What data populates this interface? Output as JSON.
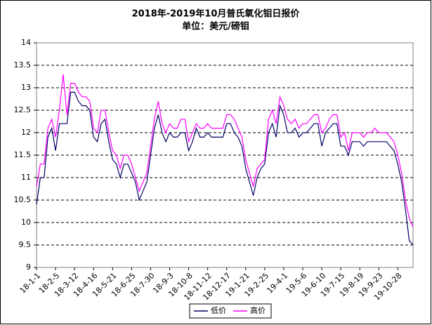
{
  "chart_data": {
    "type": "line",
    "title": "2018年-2019年10月普氏氧化钼日报价",
    "subtitle": "单位：美元/磅钼",
    "categories": [
      "18-1-1",
      null,
      null,
      null,
      null,
      "18-2-5",
      null,
      null,
      null,
      null,
      "18-3-12",
      null,
      null,
      null,
      null,
      "18-4-16",
      null,
      null,
      null,
      null,
      "18-5-21",
      null,
      null,
      null,
      null,
      "18-6-25",
      null,
      null,
      null,
      null,
      "18-7-30",
      null,
      null,
      null,
      null,
      "18-9-3",
      null,
      null,
      null,
      null,
      "18-10-8",
      null,
      null,
      null,
      null,
      "18-11-12",
      null,
      null,
      null,
      null,
      "18-12-17",
      null,
      null,
      null,
      null,
      "19-1-21",
      null,
      null,
      null,
      null,
      "19-2-25",
      null,
      null,
      null,
      null,
      "19-4-1",
      null,
      null,
      null,
      null,
      "19-5-6",
      null,
      null,
      null,
      null,
      "19-6-10",
      null,
      null,
      null,
      null,
      "19-7-15",
      null,
      null,
      null,
      null,
      "19-8-19",
      null,
      null,
      null,
      null,
      "19-9-23",
      null,
      null,
      null,
      null,
      "19-10-28",
      null,
      null,
      null,
      null
    ],
    "series": [
      {
        "name": "低价",
        "color": "#000066",
        "values": [
          10.4,
          11.0,
          11.0,
          11.9,
          12.1,
          11.6,
          12.2,
          12.2,
          12.2,
          12.9,
          12.9,
          12.7,
          12.6,
          12.6,
          12.5,
          11.9,
          11.8,
          12.2,
          12.3,
          11.8,
          11.4,
          11.3,
          11.0,
          11.3,
          11.3,
          11.1,
          10.9,
          10.5,
          10.7,
          10.9,
          11.5,
          12.1,
          12.4,
          12.0,
          11.8,
          12.0,
          11.9,
          11.9,
          12.0,
          12.0,
          11.6,
          11.8,
          12.1,
          11.9,
          11.9,
          12.0,
          11.9,
          11.9,
          11.9,
          11.9,
          12.2,
          12.2,
          12.0,
          11.9,
          11.7,
          11.2,
          10.9,
          10.6,
          11.0,
          11.2,
          11.3,
          12.0,
          12.2,
          11.9,
          12.6,
          12.4,
          12.0,
          12.0,
          12.1,
          11.9,
          12.0,
          12.0,
          12.1,
          12.2,
          12.2,
          11.7,
          12.0,
          12.1,
          12.2,
          12.2,
          11.7,
          11.7,
          11.5,
          11.8,
          11.8,
          11.8,
          11.7,
          11.8,
          11.8,
          11.8,
          11.8,
          11.8,
          11.8,
          11.7,
          11.6,
          11.3,
          10.9,
          10.3,
          9.6,
          9.5
        ]
      },
      {
        "name": "高价",
        "color": "#ff00ff",
        "values": [
          10.8,
          11.3,
          11.3,
          12.1,
          12.3,
          11.9,
          12.5,
          13.3,
          12.4,
          13.1,
          13.1,
          12.9,
          12.8,
          12.8,
          12.7,
          12.1,
          12.0,
          12.5,
          12.5,
          12.0,
          11.6,
          11.5,
          11.2,
          11.5,
          11.5,
          11.3,
          11.0,
          10.7,
          10.9,
          11.1,
          11.7,
          12.3,
          12.7,
          12.2,
          12.0,
          12.2,
          12.1,
          12.1,
          12.3,
          12.3,
          11.8,
          12.0,
          12.2,
          12.1,
          12.1,
          12.2,
          12.1,
          12.1,
          12.1,
          12.1,
          12.4,
          12.4,
          12.3,
          12.1,
          11.9,
          11.4,
          11.1,
          10.8,
          11.2,
          11.3,
          11.4,
          12.3,
          12.5,
          12.2,
          12.8,
          12.6,
          12.3,
          12.2,
          12.3,
          12.1,
          12.2,
          12.2,
          12.3,
          12.4,
          12.4,
          12.0,
          12.1,
          12.3,
          12.4,
          12.4,
          11.9,
          12.0,
          11.6,
          12.0,
          12.0,
          12.0,
          11.9,
          12.0,
          12.0,
          12.1,
          12.0,
          12.0,
          12.0,
          11.9,
          11.8,
          11.5,
          11.1,
          10.5,
          10.1,
          9.9
        ]
      }
    ],
    "ylim": [
      9,
      14
    ],
    "yticks": [
      9,
      9.5,
      10,
      10.5,
      11,
      11.5,
      12,
      12.5,
      13,
      13.5,
      14
    ],
    "grid": true,
    "legend": "bottom"
  }
}
